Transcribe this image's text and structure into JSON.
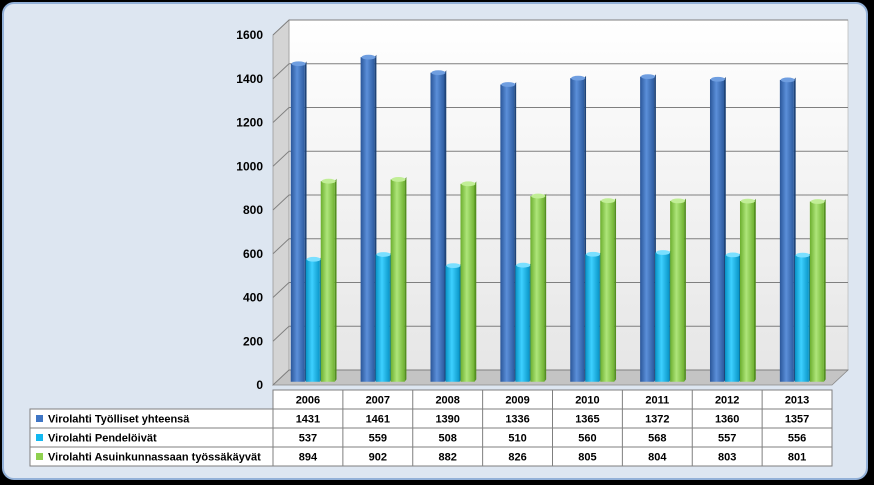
{
  "chart_data": {
    "type": "bar",
    "title": "",
    "xlabel": "",
    "ylabel": "",
    "ylim": [
      0,
      1600
    ],
    "yticks": [
      0,
      200,
      400,
      600,
      800,
      1000,
      1200,
      1400,
      1600
    ],
    "grid": true,
    "legend": "table-bottom-left",
    "categories": [
      "2006",
      "2007",
      "2008",
      "2009",
      "2010",
      "2011",
      "2012",
      "2013"
    ],
    "series": [
      {
        "name": "Virolahti Työlliset yhteensä",
        "color": "#3f75c4",
        "values": [
          1431,
          1461,
          1390,
          1336,
          1365,
          1372,
          1360,
          1357
        ]
      },
      {
        "name": "Virolahti Pendelöivät",
        "color": "#12b8f0",
        "values": [
          537,
          559,
          508,
          510,
          560,
          568,
          557,
          556
        ]
      },
      {
        "name": "Virolahti Asuinkunnassaan työssäkäyvät",
        "color": "#8fd14f",
        "values": [
          894,
          902,
          882,
          826,
          805,
          804,
          803,
          801
        ]
      }
    ]
  }
}
